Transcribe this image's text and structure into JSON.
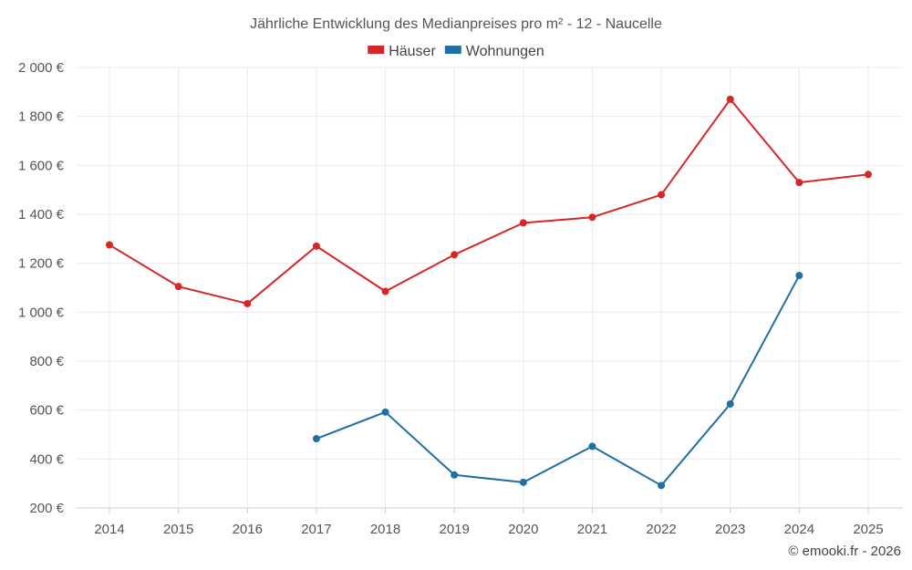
{
  "chart_data": {
    "type": "line",
    "title": "Jährliche Entwicklung des Medianpreises pro m² - 12 - Naucelle",
    "categories": [
      "2014",
      "2015",
      "2016",
      "2017",
      "2018",
      "2019",
      "2020",
      "2021",
      "2022",
      "2023",
      "2024",
      "2025"
    ],
    "series": [
      {
        "name": "Häuser",
        "color": "#d62728",
        "values": [
          1275,
          1105,
          1035,
          1270,
          1085,
          1235,
          1365,
          1388,
          1480,
          1870,
          1530,
          1563
        ]
      },
      {
        "name": "Wohnungen",
        "color": "#1f6fa5",
        "values": [
          null,
          null,
          null,
          483,
          592,
          335,
          305,
          452,
          292,
          625,
          1150,
          null
        ]
      }
    ],
    "ylim": [
      200,
      2000
    ],
    "yticks": [
      200,
      400,
      600,
      800,
      1000,
      1200,
      1400,
      1600,
      1800,
      2000
    ],
    "ytick_labels": [
      "200 €",
      "400 €",
      "600 €",
      "800 €",
      "1 000 €",
      "1 200 €",
      "1 400 €",
      "1 600 €",
      "1 800 €",
      "2 000 €"
    ],
    "xlabel": "",
    "ylabel": "",
    "legend_position": "top-center",
    "grid": true
  },
  "credit": "© emooki.fr - 2026"
}
